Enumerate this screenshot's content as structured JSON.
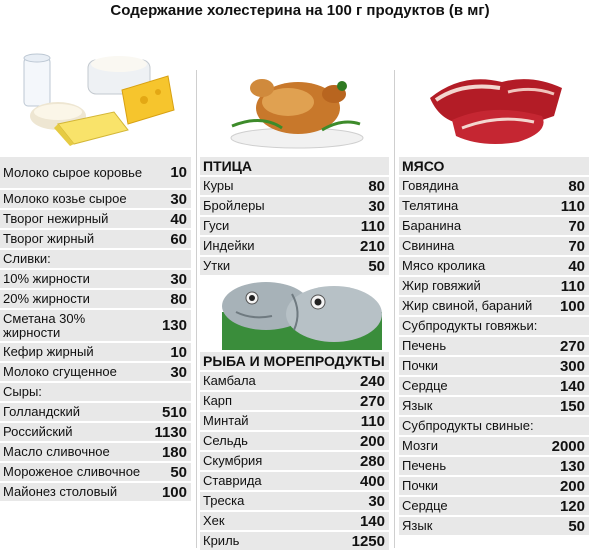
{
  "title": "Содержание холестерина на 100 г продуктов (в мг)",
  "icons": {
    "dairy": "dairy-products-image",
    "poultry": "roast-chicken-image",
    "meat": "raw-meat-image",
    "fish": "fish-image"
  },
  "dairy": {
    "rows": [
      {
        "name": "Молоко сырое коровье",
        "value": "10"
      },
      {
        "name": "Молоко козье сырое",
        "value": "30"
      },
      {
        "name": "Творог нежирный",
        "value": "40"
      },
      {
        "name": "Творог жирный",
        "value": "60"
      },
      {
        "name": "Сливки:",
        "value": ""
      },
      {
        "name": "10% жирности",
        "value": "30"
      },
      {
        "name": "20% жирности",
        "value": "80"
      },
      {
        "name": "Сметана 30% жирности",
        "value": "130"
      },
      {
        "name": "Кефир жирный",
        "value": "10"
      },
      {
        "name": "Молоко сгущенное",
        "value": "30"
      },
      {
        "name": "Сыры:",
        "value": ""
      },
      {
        "name": "Голландский",
        "value": "510"
      },
      {
        "name": "Российский",
        "value": "1130"
      },
      {
        "name": "Масло сливочное",
        "value": "180"
      },
      {
        "name": "Мороженое сливочное",
        "value": "50"
      },
      {
        "name": "Майонез столовый",
        "value": "100"
      }
    ]
  },
  "poultry": {
    "heading": "ПТИЦА",
    "rows": [
      {
        "name": "Куры",
        "value": "80"
      },
      {
        "name": "Бройлеры",
        "value": "30"
      },
      {
        "name": "Гуси",
        "value": "110"
      },
      {
        "name": "Индейки",
        "value": "210"
      },
      {
        "name": "Утки",
        "value": "50"
      }
    ]
  },
  "fish": {
    "heading": "РЫБА И МОРЕПРОДУКТЫ",
    "rows": [
      {
        "name": "Камбала",
        "value": "240"
      },
      {
        "name": "Карп",
        "value": "270"
      },
      {
        "name": "Минтай",
        "value": "110"
      },
      {
        "name": "Сельдь",
        "value": "200"
      },
      {
        "name": "Скумбрия",
        "value": "280"
      },
      {
        "name": "Ставрида",
        "value": "400"
      },
      {
        "name": "Треска",
        "value": "30"
      },
      {
        "name": "Хек",
        "value": "140"
      },
      {
        "name": "Криль",
        "value": "1250"
      }
    ]
  },
  "meat": {
    "heading": "МЯСО",
    "rows": [
      {
        "name": "Говядина",
        "value": "80"
      },
      {
        "name": "Телятина",
        "value": "110"
      },
      {
        "name": "Баранина",
        "value": "70"
      },
      {
        "name": "Свинина",
        "value": "70"
      },
      {
        "name": "Мясо кролика",
        "value": "40"
      },
      {
        "name": "Жир говяжий",
        "value": "110"
      },
      {
        "name": "Жир свиной, бараний",
        "value": "100"
      },
      {
        "name": "Субпродукты говяжьи:",
        "value": ""
      },
      {
        "name": "Печень",
        "value": "270"
      },
      {
        "name": "Почки",
        "value": "300"
      },
      {
        "name": "Сердце",
        "value": "140"
      },
      {
        "name": "Язык",
        "value": "150"
      },
      {
        "name": "Субпродукты свиные:",
        "value": ""
      },
      {
        "name": "Мозги",
        "value": "2000"
      },
      {
        "name": "Печень",
        "value": "130"
      },
      {
        "name": "Почки",
        "value": "200"
      },
      {
        "name": "Сердце",
        "value": "120"
      },
      {
        "name": "Язык",
        "value": "50"
      }
    ]
  }
}
